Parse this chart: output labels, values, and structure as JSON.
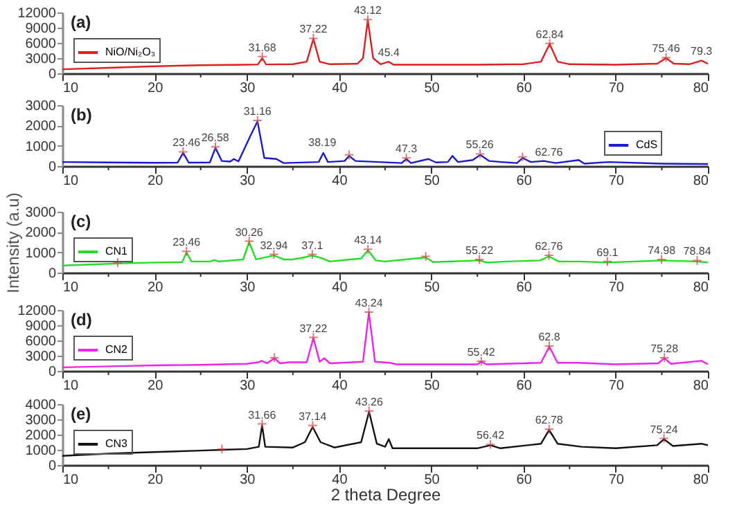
{
  "chart_data": [
    {
      "type": "line",
      "title": "(a)",
      "legend": "left",
      "xlim": [
        10,
        80
      ],
      "xticks": [
        10,
        {
          "value": 15,
          "label": null
        },
        20,
        {
          "value": 25,
          "label": null
        },
        30,
        {
          "value": 35,
          "label": null
        },
        40,
        {
          "value": 45,
          "label": null
        },
        50,
        {
          "value": 55,
          "label": null
        },
        60,
        {
          "value": 65,
          "label": null
        },
        70,
        {
          "value": 75,
          "label": null
        },
        80
      ],
      "ylim": [
        0,
        12000
      ],
      "yticks": [
        0,
        3000,
        6000,
        9000,
        12000
      ],
      "series": [
        {
          "name": "NiO/Ni₂O₃",
          "color": "#dd1f1f",
          "type": "line",
          "x": [
            10,
            15,
            20,
            25,
            30,
            31.2,
            31.68,
            32.1,
            35,
            36.5,
            37.22,
            37.9,
            39,
            42,
            42.6,
            43.12,
            43.7,
            44.5,
            45.4,
            45.9,
            50,
            55,
            60,
            61.9,
            62.84,
            63.7,
            65,
            70,
            74.5,
            75.46,
            76.3,
            78,
            79.3,
            80
          ],
          "values": [
            800,
            1100,
            1400,
            1600,
            1700,
            1750,
            3000,
            1750,
            1800,
            2300,
            6800,
            2300,
            1800,
            1900,
            3000,
            10500,
            3000,
            1800,
            2300,
            1700,
            1700,
            1700,
            1800,
            2300,
            5800,
            2300,
            1800,
            1700,
            1900,
            3000,
            1900,
            1800,
            2500,
            1900
          ]
        },
        {
          "type": "scatter",
          "marker": "cross",
          "color": "#d04040",
          "x": [
            31.68,
            37.22,
            43.12,
            62.84,
            75.46
          ],
          "values": [
            3300,
            6900,
            10600,
            5900,
            3100
          ]
        }
      ],
      "annotations": [
        {
          "text": "31.68",
          "x": 31.68,
          "y": 3300
        },
        {
          "text": "37.22",
          "x": 37.22,
          "y": 6900
        },
        {
          "text": "43.12",
          "x": 43.12,
          "y": 10600
        },
        {
          "text": "45.4",
          "x": 45.4,
          "y": 2300
        },
        {
          "text": "62.84",
          "x": 62.84,
          "y": 5900
        },
        {
          "text": "75.46",
          "x": 75.46,
          "y": 3100
        },
        {
          "text": "79.3",
          "x": 79.3,
          "y": 2600
        }
      ]
    },
    {
      "type": "line",
      "title": "(b)",
      "legend": "right",
      "xlim": [
        10,
        80
      ],
      "xticks": [
        10,
        {
          "value": 15,
          "label": null
        },
        20,
        {
          "value": 25,
          "label": null
        },
        30,
        {
          "value": 35,
          "label": null
        },
        40,
        {
          "value": 45,
          "label": null
        },
        50,
        {
          "value": 55,
          "label": null
        },
        60,
        {
          "value": 65,
          "label": null
        },
        70,
        {
          "value": 75,
          "label": null
        },
        80
      ],
      "ylim": [
        0,
        3000
      ],
      "yticks": [
        0,
        1000,
        2000,
        3000
      ],
      "series": [
        {
          "name": "CdS",
          "color": "#1a1acc",
          "type": "line",
          "x": [
            10,
            15,
            20,
            22.5,
            23.1,
            23.7,
            26,
            26.6,
            27.3,
            28.2,
            28.6,
            29.1,
            30.4,
            31.16,
            31.9,
            33.2,
            34,
            37.8,
            38.3,
            38.8,
            40.6,
            41.1,
            41.8,
            46.8,
            47.3,
            47.8,
            49.7,
            50.5,
            51.8,
            52.3,
            52.9,
            54.5,
            55.3,
            56.3,
            57.6,
            59.3,
            59.9,
            60.8,
            62.2,
            63.5,
            66,
            66.6,
            69.2,
            75,
            80
          ],
          "values": [
            200,
            180,
            160,
            170,
            650,
            170,
            180,
            900,
            250,
            220,
            350,
            230,
            1500,
            2200,
            400,
            350,
            150,
            200,
            650,
            200,
            250,
            500,
            250,
            150,
            350,
            150,
            350,
            180,
            200,
            500,
            200,
            300,
            550,
            250,
            200,
            150,
            400,
            200,
            250,
            150,
            300,
            120,
            200,
            120,
            100
          ]
        },
        {
          "type": "scatter",
          "marker": "cross",
          "color": "#d04040",
          "x": [
            23.1,
            26.6,
            31.16,
            41.1,
            47.3,
            55.3,
            59.9
          ],
          "values": [
            700,
            950,
            2250,
            550,
            400,
            600,
            450
          ]
        }
      ],
      "annotations": [
        {
          "text": "23.46",
          "x": 23.46,
          "y": 700
        },
        {
          "text": "26.58",
          "x": 26.58,
          "y": 950
        },
        {
          "text": "31.16",
          "x": 31.16,
          "y": 2250
        },
        {
          "text": "38.19",
          "x": 38.19,
          "y": 700
        },
        {
          "text": "47.3",
          "x": 47.3,
          "y": 400
        },
        {
          "text": "55.26",
          "x": 55.26,
          "y": 600
        },
        {
          "text": "62.76",
          "x": 62.76,
          "y": 250
        }
      ]
    },
    {
      "type": "line",
      "title": "(c)",
      "legend": "left",
      "ylabel": "Intensity (a.u)",
      "xlim": [
        10,
        80
      ],
      "xticks": [
        10,
        {
          "value": 15,
          "label": null
        },
        20,
        {
          "value": 25,
          "label": null
        },
        30,
        {
          "value": 35,
          "label": null
        },
        40,
        {
          "value": 45,
          "label": null
        },
        50,
        {
          "value": 55,
          "label": null
        },
        60,
        {
          "value": 65,
          "label": null
        },
        70,
        {
          "value": 75,
          "label": null
        },
        80
      ],
      "ylim": [
        0,
        3000
      ],
      "yticks": [
        0,
        1000,
        2000,
        3000
      ],
      "series": [
        {
          "name": "CN1",
          "color": "#22dd22",
          "type": "line",
          "x": [
            10,
            16,
            20,
            23,
            23.46,
            24,
            26,
            26.5,
            27,
            29.6,
            30.26,
            31,
            32.94,
            34,
            35,
            36.2,
            37.1,
            38.2,
            39,
            42.4,
            43.14,
            44,
            45,
            49.4,
            50.2,
            55.22,
            56,
            58.2,
            61.8,
            62.76,
            63.8,
            66,
            69.1,
            74.98,
            78.84,
            80
          ],
          "values": [
            350,
            450,
            500,
            520,
            1000,
            550,
            550,
            620,
            550,
            650,
            1500,
            650,
            850,
            650,
            650,
            750,
            850,
            700,
            550,
            700,
            1100,
            600,
            550,
            750,
            520,
            600,
            500,
            550,
            600,
            800,
            550,
            550,
            500,
            600,
            550,
            500
          ]
        },
        {
          "type": "scatter",
          "marker": "cross",
          "color": "#d04040",
          "x": [
            16,
            23.46,
            30.26,
            32.94,
            37.1,
            43.14,
            49.4,
            55.22,
            62.76,
            69.1,
            74.98,
            78.84
          ],
          "values": [
            500,
            1050,
            1550,
            900,
            900,
            1150,
            800,
            650,
            850,
            550,
            650,
            600
          ]
        }
      ],
      "annotations": [
        {
          "text": "23.46",
          "x": 23.46,
          "y": 1050
        },
        {
          "text": "30.26",
          "x": 30.26,
          "y": 1550
        },
        {
          "text": "32.94",
          "x": 32.94,
          "y": 900
        },
        {
          "text": "37.1",
          "x": 37.1,
          "y": 900
        },
        {
          "text": "43.14",
          "x": 43.14,
          "y": 1150
        },
        {
          "text": "55.22",
          "x": 55.22,
          "y": 650
        },
        {
          "text": "62.76",
          "x": 62.76,
          "y": 850
        },
        {
          "text": "69.1",
          "x": 69.1,
          "y": 550
        },
        {
          "text": "74.98",
          "x": 74.98,
          "y": 650
        },
        {
          "text": "78.84",
          "x": 78.84,
          "y": 600
        }
      ]
    },
    {
      "type": "line",
      "title": "(d)",
      "legend": "left",
      "xlim": [
        10,
        80
      ],
      "xticks": [
        10,
        {
          "value": 15,
          "label": null
        },
        20,
        {
          "value": 25,
          "label": null
        },
        30,
        {
          "value": 35,
          "label": null
        },
        40,
        {
          "value": 45,
          "label": null
        },
        50,
        {
          "value": 55,
          "label": null
        },
        60,
        {
          "value": 65,
          "label": null
        },
        70,
        {
          "value": 75,
          "label": null
        },
        80
      ],
      "ylim": [
        0,
        12000
      ],
      "yticks": [
        0,
        3000,
        6000,
        9000,
        12000
      ],
      "series": [
        {
          "name": "CN2",
          "color": "#ee22ee",
          "type": "line",
          "x": [
            10,
            15,
            20,
            25,
            30,
            31.3,
            31.6,
            32.2,
            33,
            33.6,
            34.6,
            36.5,
            37.22,
            37.9,
            38.4,
            39,
            42.6,
            43.24,
            43.9,
            45.5,
            46.2,
            50,
            55,
            55.42,
            56,
            61.9,
            62.8,
            63.7,
            66,
            70,
            74.6,
            75.28,
            76,
            79.3,
            80
          ],
          "values": [
            700,
            900,
            1100,
            1200,
            1400,
            1700,
            2000,
            1500,
            2500,
            1500,
            1700,
            1700,
            6500,
            1800,
            2500,
            1500,
            1800,
            11500,
            1800,
            1600,
            1300,
            1300,
            1300,
            1800,
            1300,
            1600,
            4800,
            1600,
            1600,
            1300,
            1500,
            2500,
            1400,
            2000,
            1300
          ]
        },
        {
          "type": "scatter",
          "marker": "cross",
          "color": "#d04040",
          "x": [
            33,
            37.22,
            43.24,
            55.42,
            62.8,
            75.28
          ],
          "values": [
            2600,
            6600,
            11600,
            1900,
            4900,
            2600
          ]
        }
      ],
      "annotations": [
        {
          "text": "37.22",
          "x": 37.22,
          "y": 6600
        },
        {
          "text": "43.24",
          "x": 43.24,
          "y": 11600
        },
        {
          "text": "55.42",
          "x": 55.42,
          "y": 1900
        },
        {
          "text": "62.8",
          "x": 62.8,
          "y": 4900
        },
        {
          "text": "75.28",
          "x": 75.28,
          "y": 2600
        }
      ]
    },
    {
      "type": "line",
      "title": "(e)",
      "legend": "left",
      "xlabel": "2 theta Degree",
      "xlim": [
        10,
        80
      ],
      "xticks": [
        10,
        {
          "value": 15,
          "label": null
        },
        20,
        {
          "value": 25,
          "label": null
        },
        30,
        {
          "value": 35,
          "label": null
        },
        40,
        {
          "value": 45,
          "label": null
        },
        50,
        {
          "value": 55,
          "label": null
        },
        60,
        {
          "value": 65,
          "label": null
        },
        70,
        {
          "value": 75,
          "label": null
        },
        80
      ],
      "ylim": [
        0,
        4000
      ],
      "yticks": [
        0,
        1000,
        2000,
        3000,
        4000
      ],
      "series": [
        {
          "name": "CN3",
          "color": "#111111",
          "type": "line",
          "x": [
            10,
            15,
            20,
            25,
            27.3,
            30,
            31.3,
            31.66,
            32,
            35,
            36.3,
            37.14,
            38,
            39.5,
            42.4,
            43.26,
            44.1,
            45,
            45.4,
            45.8,
            50,
            55,
            56.42,
            57.5,
            61.9,
            62.78,
            63.7,
            66.3,
            70,
            74.5,
            75.24,
            76.2,
            79.3,
            80
          ],
          "values": [
            600,
            750,
            850,
            950,
            1000,
            1050,
            1200,
            2600,
            1200,
            1150,
            1500,
            2500,
            1500,
            1150,
            1500,
            3500,
            1400,
            1200,
            1700,
            1100,
            1100,
            1100,
            1300,
            1100,
            1400,
            2300,
            1400,
            1200,
            1100,
            1300,
            1700,
            1250,
            1400,
            1300
          ]
        },
        {
          "type": "scatter",
          "marker": "cross",
          "color": "#d04040",
          "x": [
            27.3,
            31.66,
            37.14,
            43.26,
            56.42,
            62.78,
            75.24
          ],
          "values": [
            1050,
            2700,
            2600,
            3550,
            1350,
            2350,
            1750
          ]
        }
      ],
      "annotations": [
        {
          "text": "31.66",
          "x": 31.66,
          "y": 2700
        },
        {
          "text": "37.14",
          "x": 37.14,
          "y": 2600
        },
        {
          "text": "43.26",
          "x": 43.26,
          "y": 3550
        },
        {
          "text": "56.42",
          "x": 56.42,
          "y": 1350
        },
        {
          "text": "62.78",
          "x": 62.78,
          "y": 2350
        },
        {
          "text": "75.24",
          "x": 75.24,
          "y": 1750
        }
      ]
    }
  ]
}
